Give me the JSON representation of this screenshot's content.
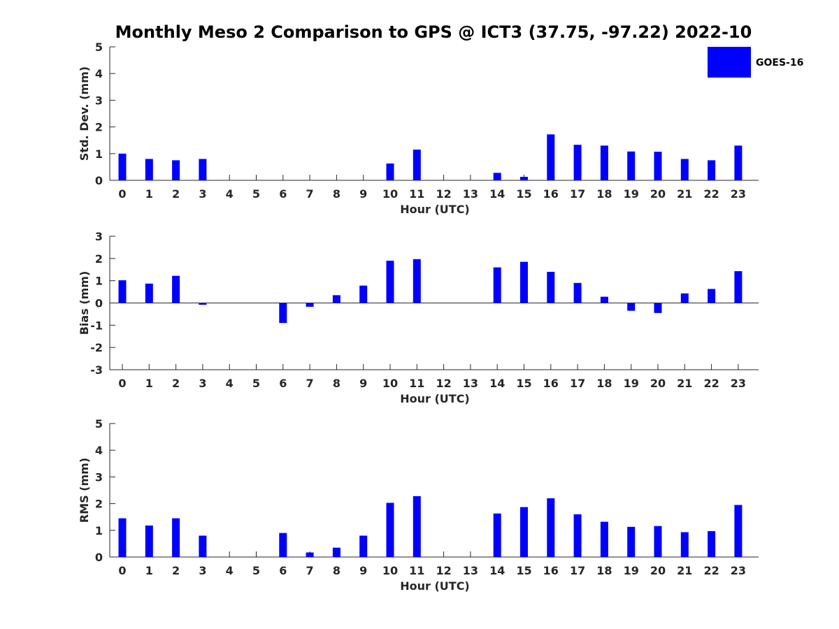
{
  "title": "Monthly Meso 2 Comparison to GPS @ ICT3 (37.75, -97.22) 2022-10",
  "legend": {
    "label": "GOES-16",
    "color": "#0000ff",
    "position": "top-right"
  },
  "bar_color": "#0000ff",
  "chart_data": [
    {
      "type": "bar",
      "xlabel": "Hour (UTC)",
      "ylabel": "Std. Dev. (mm)",
      "ylim": [
        0,
        5
      ],
      "yticks": [
        0,
        1,
        2,
        3,
        4,
        5
      ],
      "categories": [
        "0",
        "1",
        "2",
        "3",
        "4",
        "5",
        "6",
        "7",
        "8",
        "9",
        "10",
        "11",
        "12",
        "13",
        "14",
        "15",
        "16",
        "17",
        "18",
        "19",
        "20",
        "21",
        "22",
        "23"
      ],
      "series": [
        {
          "name": "GOES-16",
          "values": [
            1.0,
            0.8,
            0.75,
            0.8,
            null,
            null,
            null,
            null,
            null,
            null,
            0.63,
            1.15,
            null,
            null,
            0.28,
            0.13,
            1.72,
            1.33,
            1.3,
            1.08,
            1.07,
            0.8,
            0.75,
            1.3
          ]
        }
      ]
    },
    {
      "type": "bar",
      "xlabel": "Hour (UTC)",
      "ylabel": "Bias (mm)",
      "ylim": [
        -3,
        3
      ],
      "yticks": [
        -3,
        -2,
        -1,
        0,
        1,
        2,
        3
      ],
      "categories": [
        "0",
        "1",
        "2",
        "3",
        "4",
        "5",
        "6",
        "7",
        "8",
        "9",
        "10",
        "11",
        "12",
        "13",
        "14",
        "15",
        "16",
        "17",
        "18",
        "19",
        "20",
        "21",
        "22",
        "23"
      ],
      "series": [
        {
          "name": "GOES-16",
          "values": [
            1.02,
            0.87,
            1.22,
            -0.08,
            null,
            null,
            -0.9,
            -0.17,
            0.35,
            0.78,
            1.9,
            1.97,
            null,
            null,
            1.6,
            1.85,
            1.4,
            0.9,
            0.28,
            -0.35,
            -0.45,
            0.43,
            0.63,
            1.43
          ]
        }
      ]
    },
    {
      "type": "bar",
      "xlabel": "Hour (UTC)",
      "ylabel": "RMS (mm)",
      "ylim": [
        0,
        5
      ],
      "yticks": [
        0,
        1,
        2,
        3,
        4,
        5
      ],
      "categories": [
        "0",
        "1",
        "2",
        "3",
        "4",
        "5",
        "6",
        "7",
        "8",
        "9",
        "10",
        "11",
        "12",
        "13",
        "14",
        "15",
        "16",
        "17",
        "18",
        "19",
        "20",
        "21",
        "22",
        "23"
      ],
      "series": [
        {
          "name": "GOES-16",
          "values": [
            1.45,
            1.18,
            1.45,
            0.8,
            null,
            null,
            0.9,
            0.17,
            0.35,
            0.8,
            2.03,
            2.28,
            null,
            null,
            1.63,
            1.87,
            2.2,
            1.6,
            1.32,
            1.13,
            1.16,
            0.93,
            0.97,
            1.95
          ]
        }
      ]
    }
  ]
}
